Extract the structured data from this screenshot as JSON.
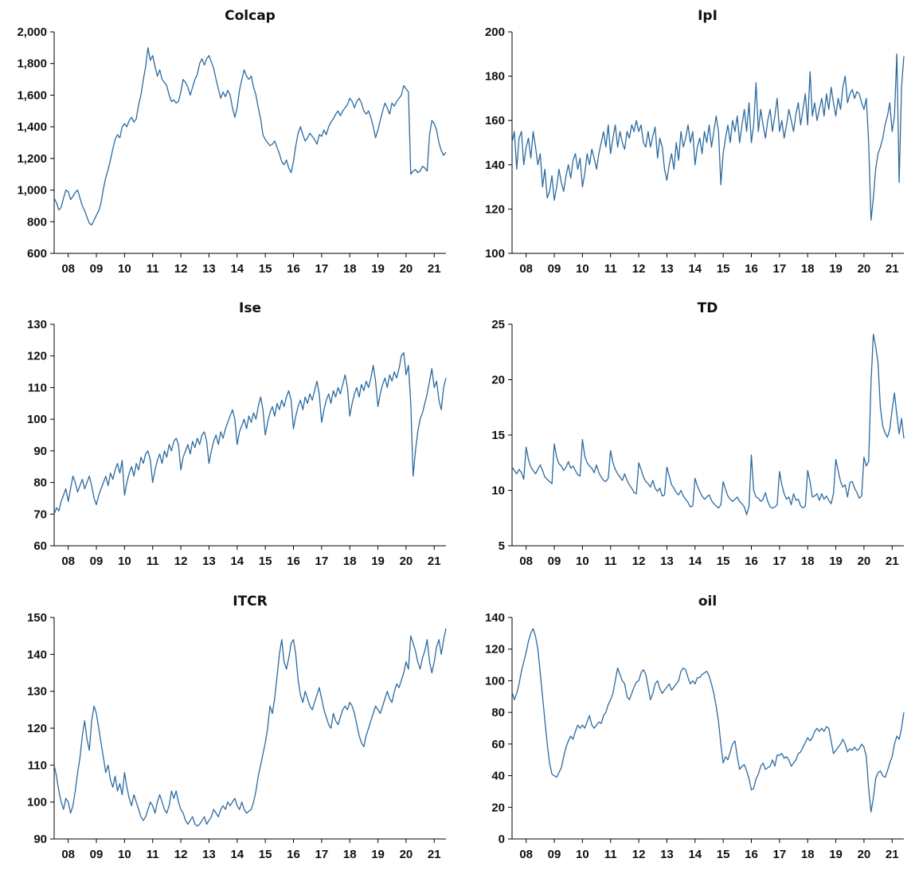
{
  "style": {
    "line_color": "#2b6a9f",
    "axis_color": "#000000",
    "text_color": "#111111",
    "background": "#ffffff"
  },
  "chart_data": [
    {
      "type": "line",
      "title": "Colcap",
      "ylim": [
        600,
        2000
      ],
      "y_ticks": [
        600,
        800,
        1000,
        1200,
        1400,
        1600,
        1800,
        2000
      ],
      "y_comma": true,
      "x_tick_labels": [
        "08",
        "09",
        "10",
        "11",
        "12",
        "13",
        "14",
        "15",
        "16",
        "17",
        "18",
        "19",
        "20",
        "21"
      ],
      "x_first_index": 6,
      "x_tick_step": 12,
      "x_range_note": "monthly 2007M07-2021M06",
      "values": [
        950,
        920,
        875,
        890,
        950,
        1000,
        990,
        940,
        960,
        985,
        1000,
        950,
        900,
        870,
        830,
        790,
        780,
        810,
        840,
        870,
        920,
        1010,
        1080,
        1130,
        1190,
        1260,
        1320,
        1350,
        1330,
        1400,
        1420,
        1400,
        1440,
        1460,
        1430,
        1450,
        1540,
        1600,
        1700,
        1780,
        1900,
        1820,
        1850,
        1780,
        1720,
        1760,
        1700,
        1680,
        1660,
        1600,
        1560,
        1570,
        1550,
        1560,
        1620,
        1700,
        1680,
        1650,
        1600,
        1650,
        1700,
        1730,
        1800,
        1830,
        1790,
        1830,
        1850,
        1810,
        1770,
        1700,
        1640,
        1580,
        1620,
        1590,
        1630,
        1600,
        1520,
        1460,
        1520,
        1630,
        1700,
        1760,
        1720,
        1700,
        1720,
        1650,
        1600,
        1520,
        1450,
        1350,
        1320,
        1300,
        1280,
        1290,
        1310,
        1270,
        1230,
        1180,
        1160,
        1190,
        1140,
        1110,
        1180,
        1280,
        1360,
        1400,
        1350,
        1310,
        1330,
        1360,
        1340,
        1320,
        1290,
        1350,
        1340,
        1380,
        1350,
        1400,
        1430,
        1450,
        1480,
        1500,
        1470,
        1500,
        1520,
        1540,
        1580,
        1560,
        1520,
        1560,
        1580,
        1550,
        1500,
        1480,
        1500,
        1460,
        1400,
        1330,
        1380,
        1440,
        1500,
        1550,
        1520,
        1480,
        1550,
        1530,
        1560,
        1580,
        1600,
        1660,
        1640,
        1620,
        1100,
        1120,
        1130,
        1110,
        1120,
        1150,
        1140,
        1120,
        1350,
        1440,
        1420,
        1380,
        1300,
        1250,
        1220,
        1240
      ]
    },
    {
      "type": "line",
      "title": "IpI",
      "ylim": [
        100,
        200
      ],
      "y_ticks": [
        100,
        120,
        140,
        160,
        180,
        200
      ],
      "y_comma": false,
      "x_tick_labels": [
        "08",
        "09",
        "10",
        "11",
        "12",
        "13",
        "14",
        "15",
        "16",
        "17",
        "18",
        "19",
        "20",
        "21"
      ],
      "x_first_index": 6,
      "x_tick_step": 12,
      "values": [
        150,
        155,
        138,
        152,
        155,
        140,
        148,
        152,
        143,
        155,
        148,
        140,
        145,
        130,
        138,
        125,
        128,
        135,
        124,
        130,
        138,
        132,
        128,
        135,
        140,
        134,
        142,
        145,
        138,
        143,
        130,
        136,
        145,
        140,
        147,
        143,
        138,
        145,
        150,
        155,
        148,
        158,
        145,
        152,
        158,
        148,
        155,
        150,
        147,
        155,
        152,
        158,
        155,
        160,
        155,
        158,
        150,
        148,
        155,
        148,
        153,
        157,
        143,
        152,
        148,
        138,
        133,
        140,
        145,
        138,
        150,
        142,
        155,
        148,
        152,
        158,
        150,
        155,
        140,
        148,
        152,
        145,
        155,
        150,
        158,
        148,
        155,
        162,
        155,
        131,
        145,
        152,
        158,
        150,
        160,
        155,
        162,
        150,
        158,
        165,
        155,
        168,
        150,
        158,
        177,
        155,
        165,
        158,
        152,
        160,
        165,
        155,
        162,
        170,
        155,
        160,
        152,
        158,
        165,
        160,
        155,
        163,
        168,
        158,
        165,
        172,
        158,
        182,
        162,
        168,
        160,
        165,
        170,
        162,
        172,
        165,
        175,
        168,
        162,
        170,
        165,
        175,
        180,
        168,
        172,
        174,
        170,
        173,
        172,
        168,
        165,
        170,
        150,
        115,
        125,
        138,
        145,
        148,
        152,
        158,
        162,
        168,
        155,
        162,
        190,
        132,
        175,
        189
      ]
    },
    {
      "type": "line",
      "title": "Ise",
      "ylim": [
        60,
        130
      ],
      "y_ticks": [
        60,
        70,
        80,
        90,
        100,
        110,
        120,
        130
      ],
      "y_comma": false,
      "x_tick_labels": [
        "08",
        "09",
        "10",
        "11",
        "12",
        "13",
        "14",
        "15",
        "16",
        "17",
        "18",
        "19",
        "20",
        "21"
      ],
      "x_first_index": 6,
      "x_tick_step": 12,
      "values": [
        70,
        72,
        71,
        74,
        76,
        78,
        74,
        78,
        82,
        80,
        77,
        79,
        81,
        78,
        80,
        82,
        79,
        75,
        73,
        76,
        78,
        80,
        82,
        79,
        83,
        81,
        84,
        86,
        83,
        87,
        76,
        80,
        83,
        85,
        82,
        86,
        84,
        88,
        86,
        89,
        90,
        87,
        80,
        84,
        87,
        89,
        86,
        90,
        88,
        92,
        90,
        93,
        94,
        92,
        84,
        88,
        90,
        92,
        89,
        93,
        91,
        94,
        92,
        95,
        96,
        93,
        86,
        90,
        93,
        95,
        92,
        96,
        94,
        97,
        99,
        101,
        103,
        100,
        92,
        96,
        98,
        100,
        97,
        101,
        99,
        102,
        100,
        104,
        107,
        103,
        95,
        99,
        102,
        104,
        101,
        105,
        103,
        106,
        104,
        107,
        109,
        106,
        97,
        101,
        104,
        106,
        103,
        107,
        105,
        108,
        106,
        109,
        112,
        108,
        99,
        103,
        106,
        108,
        105,
        109,
        107,
        110,
        108,
        111,
        114,
        110,
        101,
        105,
        108,
        110,
        107,
        111,
        109,
        112,
        110,
        113,
        117,
        112,
        104,
        108,
        111,
        113,
        110,
        114,
        112,
        115,
        113,
        116,
        120,
        121,
        114,
        117,
        105,
        82,
        90,
        96,
        100,
        102,
        105,
        108,
        112,
        116,
        110,
        112,
        106,
        103,
        110,
        113
      ]
    },
    {
      "type": "line",
      "title": "TD",
      "ylim": [
        5,
        25
      ],
      "y_ticks": [
        5,
        10,
        15,
        20,
        25
      ],
      "y_comma": false,
      "x_tick_labels": [
        "08",
        "09",
        "10",
        "11",
        "12",
        "13",
        "14",
        "15",
        "16",
        "17",
        "18",
        "19",
        "20",
        "21"
      ],
      "x_first_index": 6,
      "x_tick_step": 12,
      "values": [
        12.1,
        11.8,
        11.5,
        11.9,
        11.6,
        11.0,
        13.9,
        12.8,
        12.1,
        11.8,
        11.5,
        11.9,
        12.3,
        11.8,
        11.2,
        11.0,
        10.8,
        10.6,
        14.2,
        13.0,
        12.4,
        12.2,
        11.8,
        12.1,
        12.6,
        12.0,
        12.2,
        11.8,
        11.4,
        11.3,
        14.6,
        13.1,
        12.5,
        12.2,
        12.0,
        11.6,
        12.3,
        11.6,
        11.2,
        10.9,
        10.8,
        11.1,
        13.6,
        12.5,
        11.9,
        11.5,
        11.2,
        10.9,
        11.5,
        10.9,
        10.5,
        10.2,
        9.8,
        9.7,
        12.5,
        11.9,
        11.2,
        10.8,
        10.6,
        10.3,
        10.9,
        10.2,
        9.9,
        10.2,
        9.5,
        9.6,
        12.1,
        11.3,
        10.5,
        10.2,
        9.8,
        9.6,
        10.0,
        9.5,
        9.2,
        8.9,
        8.5,
        8.6,
        11.1,
        10.4,
        9.9,
        9.5,
        9.2,
        9.4,
        9.6,
        9.1,
        8.8,
        8.6,
        8.4,
        8.7,
        10.8,
        10.1,
        9.5,
        9.2,
        9.0,
        9.2,
        9.4,
        9.0,
        8.8,
        8.5,
        7.8,
        8.6,
        13.2,
        10.0,
        9.4,
        9.3,
        9.0,
        9.2,
        9.8,
        9.0,
        8.5,
        8.4,
        8.5,
        8.7,
        11.7,
        10.5,
        9.7,
        9.2,
        9.4,
        8.7,
        9.7,
        9.1,
        9.2,
        8.6,
        8.4,
        8.6,
        11.8,
        10.8,
        9.4,
        9.5,
        9.7,
        9.1,
        9.7,
        9.2,
        9.5,
        9.1,
        8.8,
        9.7,
        12.8,
        11.8,
        10.8,
        10.3,
        10.5,
        9.4,
        10.7,
        10.8,
        10.2,
        9.8,
        9.3,
        9.5,
        13.0,
        12.2,
        12.6,
        19.8,
        24.1,
        23.0,
        21.5,
        17.5,
        15.8,
        15.2,
        14.8,
        15.5,
        17.3,
        18.8,
        16.8,
        15.1,
        16.5,
        14.7
      ]
    },
    {
      "type": "line",
      "title": "ITCR",
      "ylim": [
        90,
        150
      ],
      "y_ticks": [
        90,
        100,
        110,
        120,
        130,
        140,
        150
      ],
      "y_comma": false,
      "x_tick_labels": [
        "08",
        "09",
        "10",
        "11",
        "12",
        "13",
        "14",
        "15",
        "16",
        "17",
        "18",
        "19",
        "20",
        "21"
      ],
      "x_first_index": 6,
      "x_tick_step": 12,
      "values": [
        110,
        107,
        103,
        100,
        98,
        101,
        100,
        97,
        99,
        103,
        108,
        112,
        118,
        122,
        117,
        114,
        122,
        126,
        124,
        120,
        116,
        112,
        108,
        110,
        106,
        104,
        107,
        103,
        105,
        102,
        108,
        104,
        101,
        99,
        102,
        100,
        98,
        96,
        95,
        96,
        98,
        100,
        99,
        97,
        100,
        102,
        100,
        98,
        97,
        99,
        103,
        101,
        103,
        100,
        98,
        97,
        95,
        94,
        95,
        96,
        94,
        93.5,
        94,
        95,
        96,
        94,
        95,
        96,
        98,
        97,
        96,
        98,
        99,
        98,
        100,
        99,
        100,
        101,
        99,
        98,
        100,
        98,
        97,
        97.5,
        98,
        100,
        103,
        107,
        110,
        113,
        116,
        120,
        126,
        124,
        128,
        134,
        140,
        144,
        138,
        136,
        139,
        143,
        144,
        140,
        133,
        129,
        127,
        130,
        128,
        126,
        125,
        127,
        129,
        131,
        128,
        125,
        123,
        121,
        120,
        124,
        122,
        121,
        123,
        125,
        126,
        125,
        127,
        126,
        124,
        121,
        118,
        116,
        115,
        118,
        120,
        122,
        124,
        126,
        125,
        124,
        126,
        128,
        130,
        128,
        127,
        130,
        132,
        131,
        133,
        135,
        138,
        136,
        145,
        143,
        141,
        138,
        136,
        139,
        141,
        144,
        138,
        135,
        138,
        142,
        144,
        140,
        144,
        147
      ]
    },
    {
      "type": "line",
      "title": "oil",
      "ylim": [
        0,
        140
      ],
      "y_ticks": [
        0,
        20,
        40,
        60,
        80,
        100,
        120,
        140
      ],
      "y_comma": false,
      "x_tick_labels": [
        "08",
        "09",
        "10",
        "11",
        "12",
        "13",
        "14",
        "15",
        "16",
        "17",
        "18",
        "19",
        "20",
        "21"
      ],
      "x_first_index": 6,
      "x_tick_step": 12,
      "values": [
        93,
        88,
        92,
        98,
        106,
        112,
        118,
        125,
        130,
        133,
        128,
        120,
        105,
        90,
        75,
        60,
        48,
        41,
        40,
        39,
        42,
        45,
        52,
        58,
        62,
        65,
        63,
        68,
        72,
        70,
        72,
        70,
        74,
        78,
        72,
        70,
        72,
        74,
        73,
        78,
        80,
        85,
        88,
        92,
        100,
        108,
        104,
        100,
        98,
        90,
        88,
        92,
        96,
        99,
        100,
        105,
        107,
        104,
        96,
        88,
        92,
        98,
        100,
        95,
        92,
        94,
        96,
        98,
        94,
        96,
        98,
        100,
        106,
        108,
        107,
        102,
        98,
        100,
        98,
        102,
        102,
        104,
        105,
        106,
        103,
        98,
        92,
        84,
        74,
        60,
        48,
        52,
        50,
        55,
        60,
        62,
        52,
        44,
        46,
        47,
        43,
        38,
        31,
        32,
        38,
        41,
        46,
        48,
        44,
        45,
        46,
        50,
        46,
        53,
        53,
        54,
        51,
        52,
        50,
        46,
        48,
        50,
        54,
        55,
        58,
        61,
        64,
        62,
        64,
        68,
        70,
        68,
        70,
        68,
        71,
        70,
        62,
        54,
        56,
        58,
        60,
        63,
        60,
        55,
        57,
        56,
        58,
        56,
        57,
        60,
        58,
        52,
        32,
        17,
        26,
        38,
        42,
        43,
        40,
        39,
        43,
        48,
        52,
        60,
        65,
        63,
        70,
        80
      ]
    }
  ]
}
